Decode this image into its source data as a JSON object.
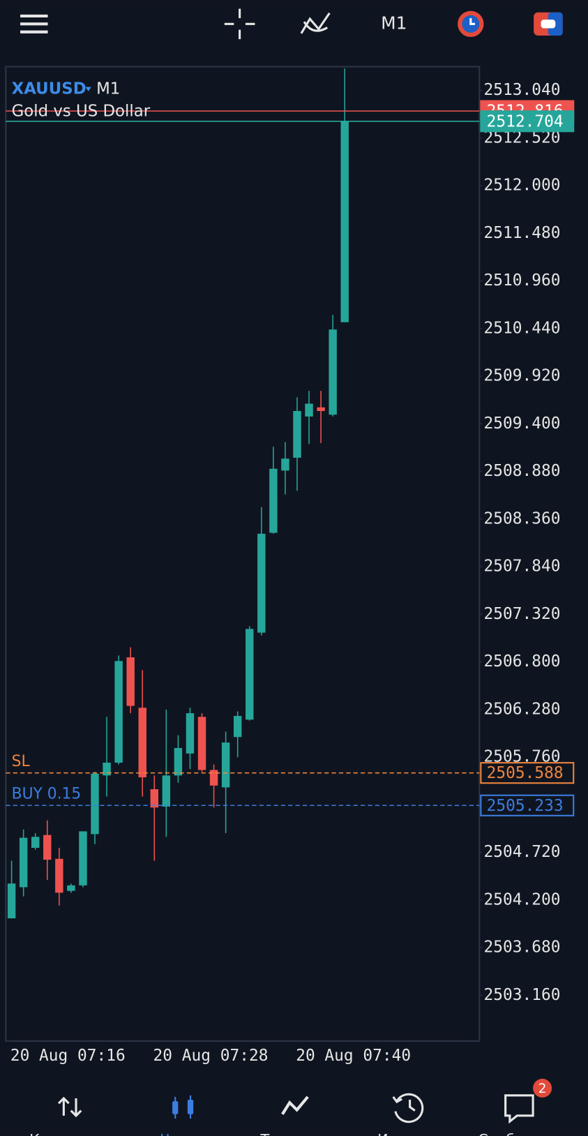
{
  "chart_data": {
    "type": "candlestick",
    "title": "XAUUSD",
    "timeframe": "M1",
    "subtitle": "Gold vs US Dollar",
    "categories": [
      null,
      null,
      null,
      null,
      "20 Aug 07:16",
      null,
      null,
      null,
      null,
      null,
      null,
      null,
      null,
      null,
      null,
      null,
      "20 Aug 07:28",
      null,
      null,
      null,
      null,
      null,
      null,
      null,
      null,
      null,
      null,
      null,
      "20 Aug 07:40"
    ],
    "open": [
      2504.0,
      2504.34,
      2504.77,
      2504.91,
      2504.65,
      2504.3,
      2504.36,
      2504.92,
      2505.56,
      2505.7,
      2506.85,
      2506.3,
      2505.41,
      2505.22,
      2505.56,
      2505.8,
      2506.2,
      2505.62,
      2505.43,
      2505.98,
      2506.17,
      2507.12,
      2508.21,
      2508.89,
      2509.03,
      2509.48,
      2509.58,
      2509.5,
      2510.51
    ],
    "high": [
      2504.63,
      2504.97,
      2504.93,
      2505.07,
      2504.77,
      2504.38,
      2504.95,
      2505.6,
      2506.2,
      2506.87,
      2506.96,
      2506.71,
      2505.56,
      2506.28,
      2506.0,
      2506.3,
      2506.24,
      2505.68,
      2506.04,
      2506.26,
      2507.19,
      2508.49,
      2509.15,
      2509.2,
      2509.69,
      2509.76,
      2509.76,
      2510.59,
      2513.28
    ],
    "low": [
      2504.0,
      2504.24,
      2504.75,
      2504.42,
      2504.14,
      2504.28,
      2504.34,
      2504.81,
      2505.33,
      2505.68,
      2506.24,
      2505.33,
      2504.63,
      2504.89,
      2505.48,
      2505.63,
      2505.6,
      2505.21,
      2504.93,
      2505.76,
      2506.16,
      2507.09,
      2508.2,
      2508.63,
      2508.67,
      2509.18,
      2509.19,
      2509.48,
      2510.51
    ],
    "close": [
      2504.38,
      2504.88,
      2504.89,
      2504.64,
      2504.28,
      2504.36,
      2504.95,
      2505.58,
      2505.7,
      2506.81,
      2506.32,
      2505.54,
      2505.21,
      2505.56,
      2505.86,
      2506.24,
      2505.62,
      2505.45,
      2505.92,
      2506.21,
      2507.16,
      2508.2,
      2508.91,
      2509.02,
      2509.54,
      2509.62,
      2509.54,
      2510.43,
      2512.704
    ],
    "up_color": "#26a69a",
    "down_color": "#ef5350",
    "ylim": [
      2502.66,
      2513.3
    ],
    "yticks": [
      {
        "value": 2513.04,
        "label": "2513.040"
      },
      {
        "value": 2512.52,
        "label": "2512.520"
      },
      {
        "value": 2512.0,
        "label": "2512.000"
      },
      {
        "value": 2511.48,
        "label": "2511.480"
      },
      {
        "value": 2510.96,
        "label": "2510.960"
      },
      {
        "value": 2510.44,
        "label": "2510.440"
      },
      {
        "value": 2509.92,
        "label": "2509.920"
      },
      {
        "value": 2509.4,
        "label": "2509.400"
      },
      {
        "value": 2508.88,
        "label": "2508.880"
      },
      {
        "value": 2508.36,
        "label": "2508.360"
      },
      {
        "value": 2507.84,
        "label": "2507.840"
      },
      {
        "value": 2507.32,
        "label": "2507.320"
      },
      {
        "value": 2506.8,
        "label": "2506.800"
      },
      {
        "value": 2506.28,
        "label": "2506.280"
      },
      {
        "value": 2505.76,
        "label": "2505.760"
      },
      {
        "value": 2505.24,
        "label": "2505.240"
      },
      {
        "value": 2504.72,
        "label": "2504.720"
      },
      {
        "value": 2504.2,
        "label": "2504.200"
      },
      {
        "value": 2503.68,
        "label": "2503.680"
      },
      {
        "value": 2503.16,
        "label": "2503.160"
      }
    ],
    "price_lines": [
      {
        "value": 2512.816,
        "color": "#ef5350",
        "style": "solid",
        "box": "filled"
      },
      {
        "value": 2512.704,
        "color": "#26a69a",
        "style": "solid",
        "box": "filled"
      },
      {
        "name": "SL",
        "value": 2505.588,
        "color": "#f0843c",
        "style": "dashed",
        "box": "outline"
      },
      {
        "name": "BUY 0.15",
        "value": 2505.233,
        "color": "#3d7de0",
        "style": "dashed",
        "box": "outline"
      }
    ]
  },
  "nav": {
    "items": [
      "Котировки",
      "Чарты",
      "Торговля",
      "История",
      "Сообщения"
    ],
    "active": 1,
    "badge": 2
  }
}
